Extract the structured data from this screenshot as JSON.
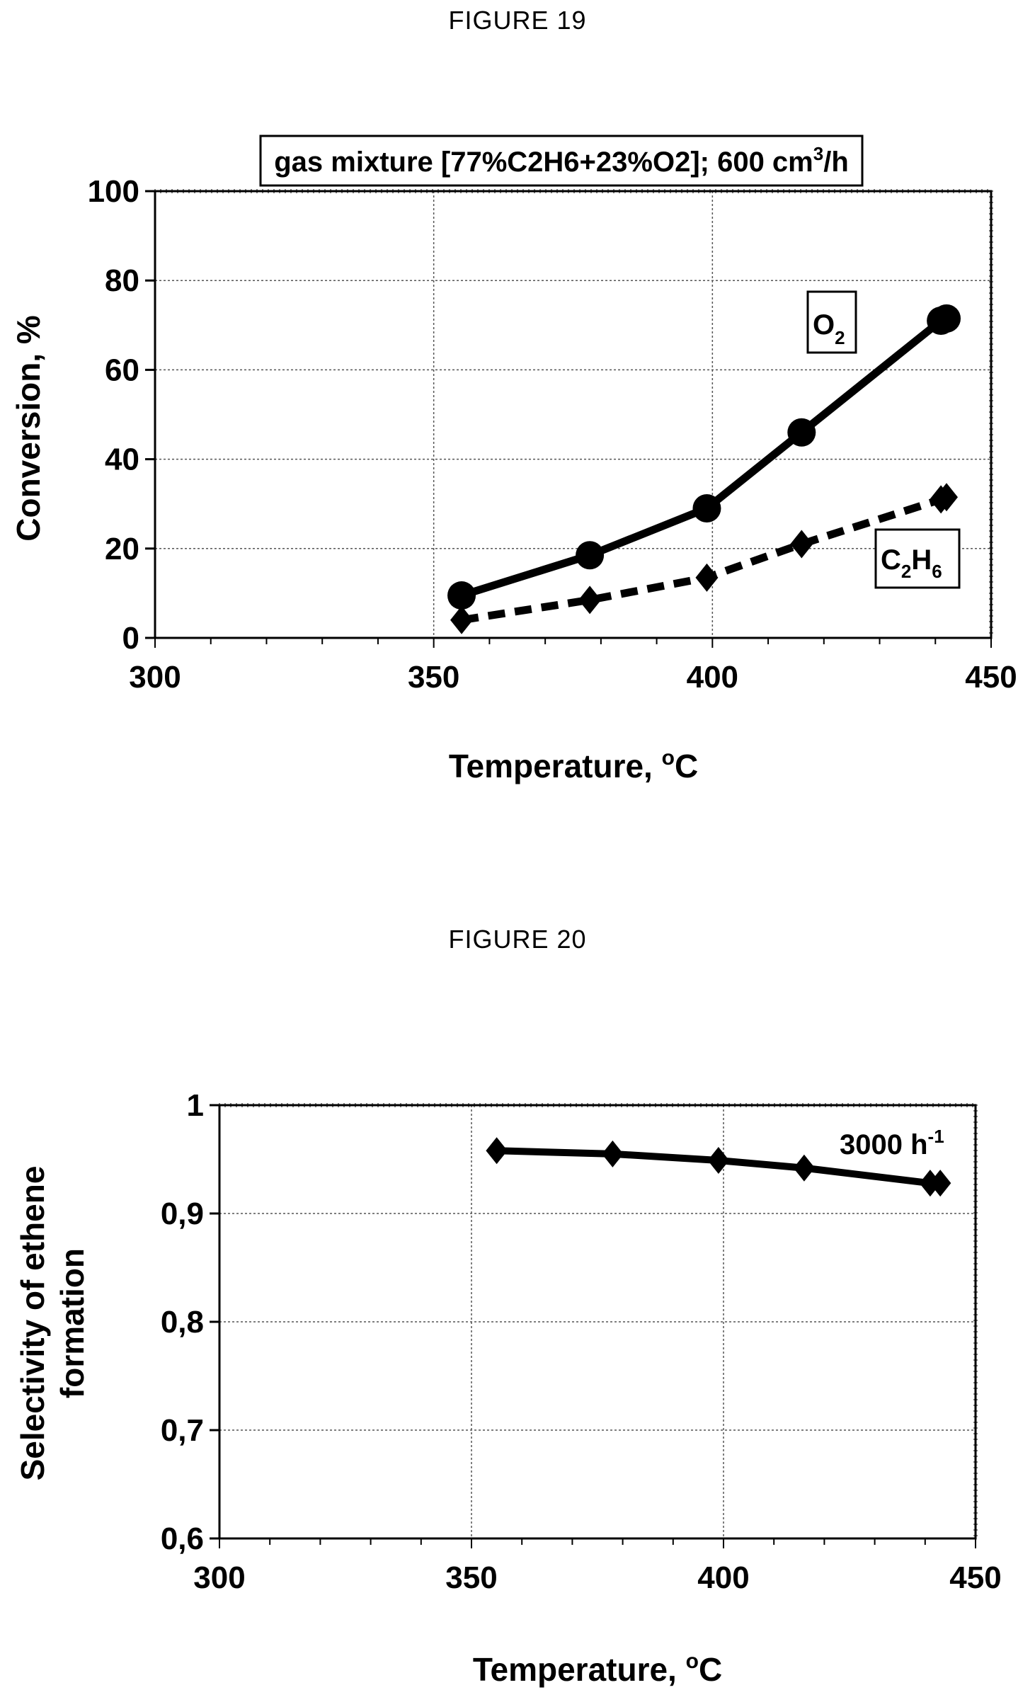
{
  "figures": [
    {
      "caption": "FIGURE 19"
    },
    {
      "caption": "FIGURE 20"
    }
  ],
  "chart_data": [
    {
      "type": "line",
      "title": "gas mixture [77%C2H6+23%O2]; 600 cm",
      "title_sup": "3",
      "title_end": "/h",
      "xlabel": "Temperature, ",
      "xlabel_sup": "o",
      "xlabel_end": "C",
      "ylabel": "Conversion, %",
      "xlim": [
        300,
        450
      ],
      "ylim": [
        0,
        100
      ],
      "xticks": [
        "300",
        "350",
        "400",
        "450"
      ],
      "yticks": [
        "0",
        "20",
        "40",
        "60",
        "80",
        "100"
      ],
      "grid": true,
      "series": [
        {
          "name": "O",
          "name_sub": "2",
          "marker": "circle",
          "line": "solid",
          "x": [
            355,
            378,
            399,
            416,
            441,
            442
          ],
          "y": [
            9.5,
            18.5,
            29,
            46,
            71,
            71.5
          ]
        },
        {
          "name": "C",
          "name_sub": "2",
          "name_mid": "H",
          "name_sub2": "6",
          "marker": "diamond",
          "line": "dashed",
          "x": [
            355,
            378,
            399,
            416,
            441,
            442
          ],
          "y": [
            4,
            8.5,
            13.5,
            21,
            31,
            31.5
          ]
        }
      ]
    },
    {
      "type": "line",
      "xlabel": "Temperature, ",
      "xlabel_sup": "o",
      "xlabel_end": "C",
      "ylabel": "Selectivity of ethene",
      "ylabel2": "formation",
      "xlim": [
        300,
        450
      ],
      "ylim": [
        0.6,
        1
      ],
      "xticks": [
        "300",
        "350",
        "400",
        "450"
      ],
      "yticks": [
        "0,6",
        "0,7",
        "0,8",
        "0,9",
        "1"
      ],
      "grid": true,
      "series": [
        {
          "name": "3000 h",
          "name_sup": "-1",
          "marker": "diamond",
          "line": "solid",
          "x": [
            355,
            378,
            399,
            416,
            441,
            443
          ],
          "y": [
            0.958,
            0.955,
            0.949,
            0.942,
            0.928,
            0.928
          ]
        }
      ]
    }
  ]
}
